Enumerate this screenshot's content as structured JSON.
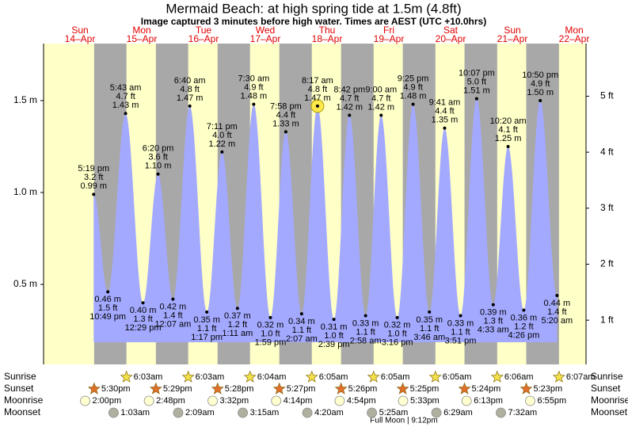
{
  "chart_data": {
    "type": "tide",
    "title": "Mermaid Beach: at high  spring tide at 1.5m (4.8ft)",
    "subtitle": "Image captured 3 minutes before high water. Times are AEST (UTC +10.0hrs)",
    "weekdays": [
      "Sun",
      "Mon",
      "Tue",
      "Wed",
      "Thu",
      "Fri",
      "Sat",
      "Sun",
      "Mon"
    ],
    "dates": [
      "14–Apr",
      "15–Apr",
      "16–Apr",
      "17–Apr",
      "18–Apr",
      "19–Apr",
      "20–Apr",
      "21–Apr",
      "22–Apr"
    ],
    "ylim": [
      0.065,
      1.81
    ],
    "yticks": [
      {
        "value": 0.5,
        "label": "0.5 m"
      },
      {
        "value": 1.0,
        "label": "1.0 m"
      },
      {
        "value": 1.5,
        "label": "1.5 m"
      }
    ],
    "y2lim": [
      0.21,
      5.94
    ],
    "y2ticks": [
      {
        "value": 1,
        "label": "1 ft"
      },
      {
        "value": 2,
        "label": "2 ft"
      },
      {
        "value": 3,
        "label": "3 ft"
      },
      {
        "value": 4,
        "label": "4 ft"
      },
      {
        "value": 5,
        "label": "5 ft"
      }
    ],
    "color": "#a3a9ff",
    "tides": {
      "dates": [
        "14–Apr",
        "14–Apr",
        "15–Apr",
        "15–Apr",
        "15–Apr",
        "16–Apr",
        "16–Apr",
        "16–Apr",
        "16–Apr",
        "17–Apr",
        "17–Apr",
        "17–Apr",
        "17–Apr",
        "18–Apr",
        "18–Apr",
        "18–Apr",
        "18–Apr",
        "19–Apr",
        "19–Apr",
        "19–Apr",
        "19–Apr",
        "20–Apr",
        "20–Apr",
        "20–Apr",
        "20–Apr",
        "21–Apr",
        "21–Apr",
        "21–Apr",
        "21–Apr",
        "22–Apr"
      ],
      "times": [
        "5:19 pm",
        "10:49 pm",
        "5:43 am",
        "12:29 pm",
        "6:20 pm",
        "12:07 am",
        "6:40 am",
        "1:17 pm",
        "7:11 pm",
        "1:11 am",
        "7:30 am",
        "1:59 pm",
        "7:58 pm",
        "2:07 am",
        "8:17 am",
        "2:39 pm",
        "8:42 pm",
        "2:58 am",
        "9:00 am",
        "3:16 pm",
        "9:25 pm",
        "3:46 am",
        "9:41 am",
        "3:51 pm",
        "10:07 pm",
        "4:33 am",
        "10:20 am",
        "4:26 pm",
        "10:50 pm",
        "5:20 am"
      ],
      "values": [
        0.99,
        0.46,
        1.43,
        0.4,
        1.1,
        0.42,
        1.47,
        0.35,
        1.22,
        0.37,
        1.48,
        0.32,
        1.33,
        0.34,
        1.47,
        0.31,
        1.42,
        0.33,
        1.42,
        0.32,
        1.48,
        0.35,
        1.35,
        0.33,
        1.51,
        0.39,
        1.25,
        0.36,
        1.5,
        0.44
      ],
      "value_labels": [
        "0.99 m",
        "0.46 m",
        "1.43 m",
        "0.40 m",
        "1.10 m",
        "0.42 m",
        "1.47 m",
        "0.35 m",
        "1.22 m",
        "0.37 m",
        "1.48 m",
        "0.32 m",
        "1.33 m",
        "0.34 m",
        "1.47 m",
        "0.31 m",
        "1.42 m",
        "0.33 m",
        "1.42 m",
        "0.32 m",
        "1.48 m",
        "0.35 m",
        "1.35 m",
        "0.33 m",
        "1.51 m",
        "0.39 m",
        "1.25 m",
        "0.36 m",
        "1.50 m",
        "0.44 m"
      ],
      "ft_labels": [
        "3.2 ft",
        "1.5 ft",
        "4.7 ft",
        "1.3 ft",
        "3.6 ft",
        "1.4 ft",
        "4.8 ft",
        "1.1 ft",
        "4.0 ft",
        "1.2 ft",
        "4.9 ft",
        "1.0 ft",
        "4.4 ft",
        "1.1 ft",
        "4.8 ft",
        "1.0 ft",
        "4.7 ft",
        "1.1 ft",
        "4.7 ft",
        "1.0 ft",
        "4.9 ft",
        "1.1 ft",
        "4.4 ft",
        "1.1 ft",
        "5.0 ft",
        "1.3 ft",
        "4.1 ft",
        "1.2 ft",
        "4.9 ft",
        "1.4 ft"
      ]
    },
    "sunrise": {
      "label": "Sunrise",
      "dates": [
        "15–Apr",
        "16–Apr",
        "17–Apr",
        "18–Apr",
        "19–Apr",
        "20–Apr",
        "21–Apr",
        "22–Apr"
      ],
      "times": [
        "6:03am",
        "6:03am",
        "6:04am",
        "6:05am",
        "6:05am",
        "6:05am",
        "6:06am",
        "6:07am"
      ]
    },
    "sunset": {
      "label": "Sunset",
      "dates": [
        "14–Apr",
        "15–Apr",
        "16–Apr",
        "17–Apr",
        "18–Apr",
        "19–Apr",
        "20–Apr",
        "21–Apr"
      ],
      "times": [
        "5:30pm",
        "5:29pm",
        "5:28pm",
        "5:27pm",
        "5:26pm",
        "5:25pm",
        "5:24pm",
        "5:23pm"
      ]
    },
    "moonrise": {
      "label": "Moonrise",
      "dates": [
        "14–Apr",
        "15–Apr",
        "16–Apr",
        "17–Apr",
        "18–Apr",
        "19–Apr",
        "20–Apr",
        "21–Apr"
      ],
      "times": [
        "2:00pm",
        "2:48pm",
        "3:32pm",
        "4:14pm",
        "4:54pm",
        "5:33pm",
        "6:13pm",
        "6:55pm"
      ]
    },
    "moonset": {
      "label": "Moonset",
      "dates": [
        "15–Apr",
        "16–Apr",
        "17–Apr",
        "18–Apr",
        "19–Apr",
        "20–Apr",
        "21–Apr"
      ],
      "times": [
        "1:03am",
        "2:09am",
        "3:15am",
        "4:20am",
        "5:25am",
        "6:29am",
        "7:32am"
      ]
    },
    "moon_phase": "Full Moon | 9:12pm"
  }
}
